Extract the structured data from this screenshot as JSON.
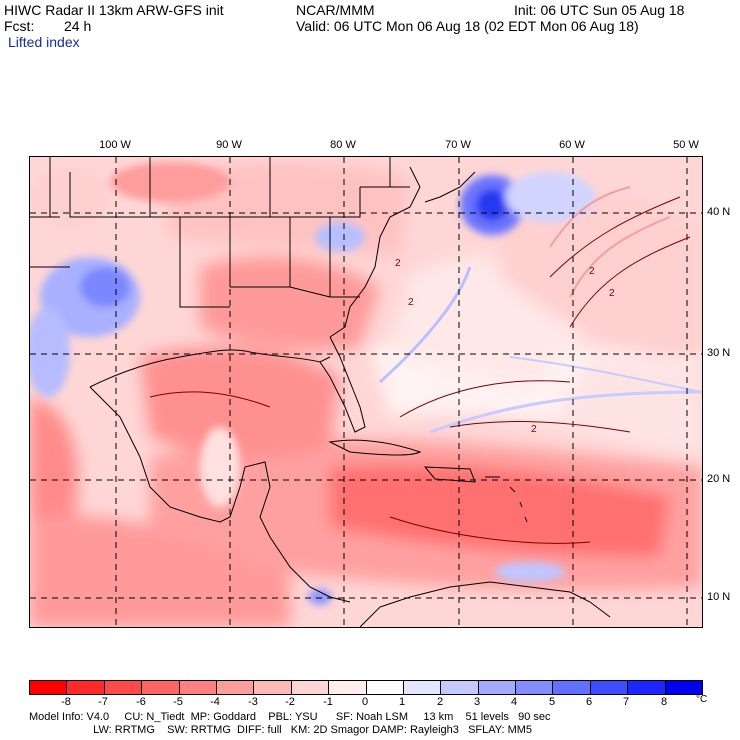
{
  "header": {
    "title_left": "HIWC Radar II 13km ARW-GFS init",
    "source": "NCAR/MMM",
    "init": "Init: 06 UTC Sun 05 Aug 18",
    "fcst_label": "Fcst:",
    "fcst_value": "24 h",
    "valid": "Valid: 06 UTC Mon 06 Aug 18 (02 EDT Mon 06 Aug 18)",
    "field_name": "Lifted index"
  },
  "map": {
    "longitude_labels": [
      "100 W",
      "90 W",
      "80 W",
      "70 W",
      "60 W",
      "50 W"
    ],
    "latitude_labels": [
      "40 N",
      "30 N",
      "20 N",
      "10 N"
    ],
    "contour_label": "2"
  },
  "colorbar": {
    "ticks": [
      "-8",
      "-7",
      "-6",
      "-5",
      "-4",
      "-3",
      "-2",
      "-1",
      "0",
      "1",
      "2",
      "3",
      "4",
      "5",
      "6",
      "7",
      "8"
    ],
    "unit": "°C",
    "colors": [
      "#ff0000",
      "#ff2b2b",
      "#ff4a4a",
      "#ff6464",
      "#ff8080",
      "#ff9c9c",
      "#ffb8b8",
      "#ffd4d4",
      "#ffeeee",
      "#ffffff",
      "#e4e6ff",
      "#c4c9ff",
      "#a3abff",
      "#838dff",
      "#6270ff",
      "#3e4cff",
      "#1a28ff",
      "#0000ee"
    ]
  },
  "footer": {
    "line1": "Model Info: V4.0     CU: N_Tiedt  MP: Goddard    PBL: YSU      SF: Noah LSM     13 km    51 levels   90 sec",
    "line2": "                     LW: RRTMG    SW: RRTMG  DIFF: full   KM: 2D Smagor DAMP: Rayleigh3   SFLAY: MM5"
  }
}
